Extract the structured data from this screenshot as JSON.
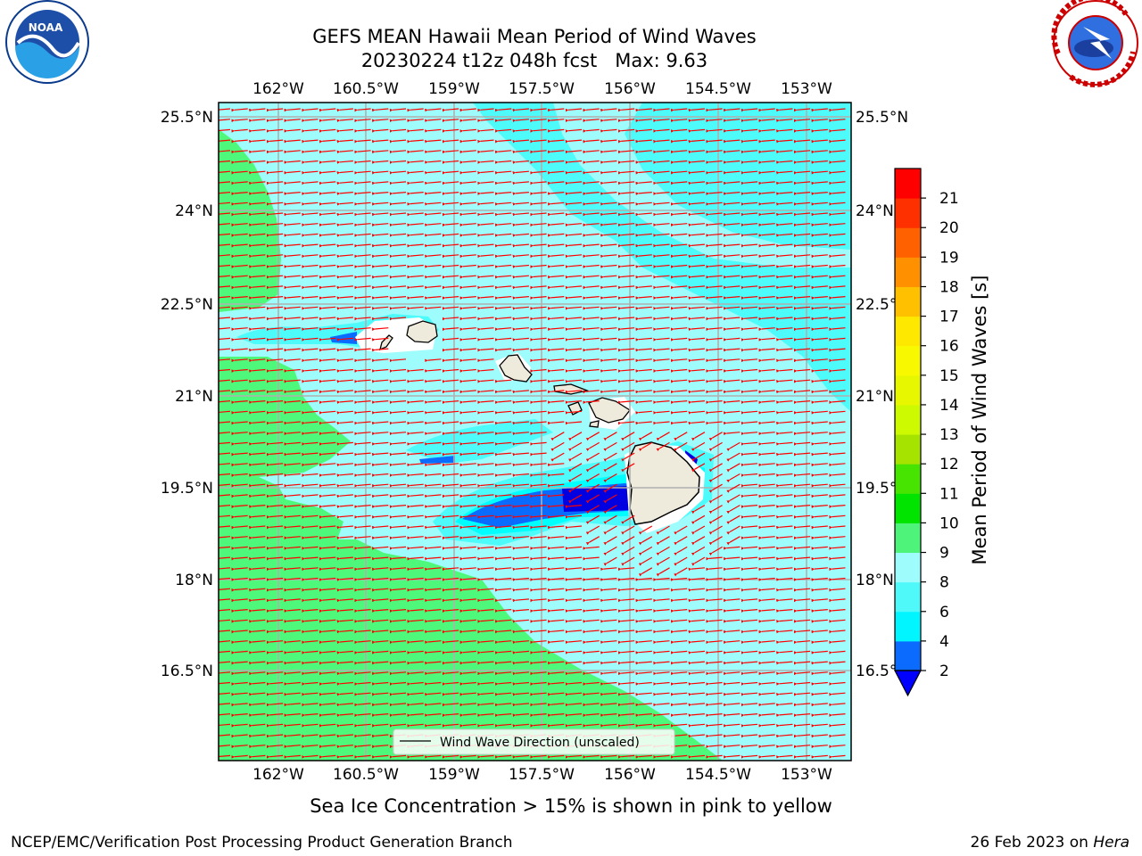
{
  "title": {
    "line1": "GEFS MEAN Hawaii Mean Period of Wind Waves",
    "line2": "20230224 t12z 048h fcst   Max: 9.63"
  },
  "logos": {
    "left": {
      "icon": "noaa-logo",
      "wordmark": "NOAA"
    },
    "right": {
      "icon": "national-weather-service-logo"
    }
  },
  "map": {
    "lon_ticks": [
      "162°W",
      "160.5°W",
      "159°W",
      "157.5°W",
      "156°W",
      "154.5°W",
      "153°W"
    ],
    "lat_ticks": [
      "25.5°N",
      "24°N",
      "22.5°N",
      "21°N",
      "19.5°N",
      "18°N",
      "16.5°N"
    ],
    "legend_label": "Wind Wave Direction (unscaled)",
    "arrow_direction": "toward west-southwest",
    "colors": {
      "ocean_8_9": "#9ffcfc",
      "ocean_6_8": "#4dfbfb",
      "ocean_9_10": "#4ef87a",
      "ocean_4_6": "#00ffff",
      "ocean_2_4": "#0a6cff",
      "ocean_lt_2": "#0000e0",
      "land": "#efebdc",
      "arrow": "#ff0000",
      "grid": "#b0b0b0"
    }
  },
  "colorbar": {
    "label": "Mean Period of Wind Waves [s]",
    "ticks": [
      "2",
      "4",
      "6",
      "8",
      "9",
      "10",
      "11",
      "12",
      "13",
      "14",
      "15",
      "16",
      "17",
      "18",
      "19",
      "20",
      "21"
    ],
    "colors": [
      "#0b6bff",
      "#00f5ff",
      "#4ff9f9",
      "#9ffcfc",
      "#4ef37a",
      "#00e400",
      "#46e400",
      "#a6e400",
      "#cdfa00",
      "#e6f700",
      "#f8f800",
      "#ffe800",
      "#ffc000",
      "#ff9000",
      "#ff6000",
      "#ff3000",
      "#ff0000"
    ],
    "extend_color": "#0000ff"
  },
  "note": "Sea Ice Concentration > 15% is shown in pink to yellow",
  "footer": {
    "left": "NCEP/EMC/Verification Post Processing Product Generation Branch",
    "right_prefix": "26 Feb 2023 on ",
    "right_machine": "Hera"
  }
}
